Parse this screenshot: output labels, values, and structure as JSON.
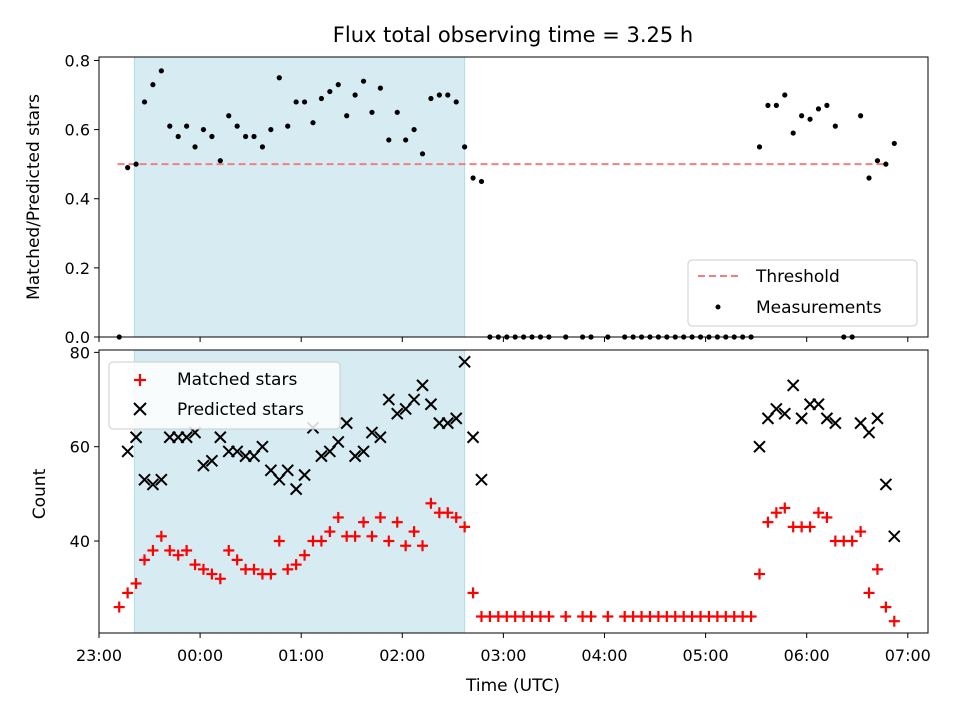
{
  "title": "Flux total observing time = 3.25 h",
  "chart_data": [
    {
      "type": "scatter",
      "ylabel": "Matched/Predicted stars",
      "xlim": [
        "23:00",
        "07:12"
      ],
      "ylim": [
        0,
        0.81
      ],
      "yticks": [
        "0.0",
        "0.2",
        "0.4",
        "0.6",
        "0.8"
      ],
      "shaded_interval": [
        "23:21",
        "02:37"
      ],
      "threshold": {
        "name": "Threshold",
        "value": 0.5,
        "from": "23:11",
        "to": "06:48",
        "color": "#f08080"
      },
      "legend": {
        "placement": "lower-right",
        "entries": [
          "Threshold",
          "Measurements"
        ]
      },
      "series": [
        {
          "name": "Measurements",
          "color": "#000000",
          "points": [
            [
              "23:12",
              0.0
            ],
            [
              "23:17",
              0.49
            ],
            [
              "23:22",
              0.5
            ],
            [
              "23:27",
              0.68
            ],
            [
              "23:32",
              0.73
            ],
            [
              "23:37",
              0.77
            ],
            [
              "23:42",
              0.61
            ],
            [
              "23:47",
              0.58
            ],
            [
              "23:52",
              0.61
            ],
            [
              "23:57",
              0.55
            ],
            [
              "00:02",
              0.6
            ],
            [
              "00:07",
              0.58
            ],
            [
              "00:12",
              0.51
            ],
            [
              "00:17",
              0.64
            ],
            [
              "00:22",
              0.61
            ],
            [
              "00:27",
              0.58
            ],
            [
              "00:32",
              0.58
            ],
            [
              "00:37",
              0.55
            ],
            [
              "00:42",
              0.6
            ],
            [
              "00:47",
              0.75
            ],
            [
              "00:52",
              0.61
            ],
            [
              "00:57",
              0.68
            ],
            [
              "01:02",
              0.68
            ],
            [
              "01:07",
              0.62
            ],
            [
              "01:12",
              0.69
            ],
            [
              "01:17",
              0.71
            ],
            [
              "01:22",
              0.73
            ],
            [
              "01:27",
              0.64
            ],
            [
              "01:32",
              0.7
            ],
            [
              "01:37",
              0.74
            ],
            [
              "01:42",
              0.65
            ],
            [
              "01:47",
              0.72
            ],
            [
              "01:52",
              0.57
            ],
            [
              "01:57",
              0.65
            ],
            [
              "02:02",
              0.57
            ],
            [
              "02:07",
              0.6
            ],
            [
              "02:12",
              0.53
            ],
            [
              "02:17",
              0.69
            ],
            [
              "02:22",
              0.7
            ],
            [
              "02:27",
              0.7
            ],
            [
              "02:32",
              0.68
            ],
            [
              "02:37",
              0.55
            ],
            [
              "02:42",
              0.46
            ],
            [
              "02:47",
              0.45
            ],
            [
              "02:52",
              0.0
            ],
            [
              "02:57",
              0.0
            ],
            [
              "03:02",
              0.0
            ],
            [
              "03:07",
              0.0
            ],
            [
              "03:12",
              0.0
            ],
            [
              "03:17",
              0.0
            ],
            [
              "03:22",
              0.0
            ],
            [
              "03:27",
              0.0
            ],
            [
              "03:37",
              0.0
            ],
            [
              "03:47",
              0.0
            ],
            [
              "03:52",
              0.0
            ],
            [
              "04:02",
              0.0
            ],
            [
              "04:12",
              0.0
            ],
            [
              "04:17",
              0.0
            ],
            [
              "04:22",
              0.0
            ],
            [
              "04:27",
              0.0
            ],
            [
              "04:32",
              0.0
            ],
            [
              "04:37",
              0.0
            ],
            [
              "04:42",
              0.0
            ],
            [
              "04:47",
              0.0
            ],
            [
              "04:52",
              0.0
            ],
            [
              "04:57",
              0.0
            ],
            [
              "05:02",
              0.0
            ],
            [
              "05:07",
              0.0
            ],
            [
              "05:12",
              0.0
            ],
            [
              "05:17",
              0.0
            ],
            [
              "05:22",
              0.0
            ],
            [
              "05:27",
              0.0
            ],
            [
              "05:32",
              0.55
            ],
            [
              "05:37",
              0.67
            ],
            [
              "05:42",
              0.67
            ],
            [
              "05:47",
              0.7
            ],
            [
              "05:52",
              0.59
            ],
            [
              "05:57",
              0.64
            ],
            [
              "06:02",
              0.63
            ],
            [
              "06:07",
              0.66
            ],
            [
              "06:12",
              0.67
            ],
            [
              "06:17",
              0.61
            ],
            [
              "06:22",
              0.0
            ],
            [
              "06:27",
              0.0
            ],
            [
              "06:32",
              0.64
            ],
            [
              "06:37",
              0.46
            ],
            [
              "06:42",
              0.51
            ],
            [
              "06:47",
              0.5
            ],
            [
              "06:52",
              0.56
            ]
          ]
        }
      ]
    },
    {
      "type": "scatter",
      "xlabel": "Time (UTC)",
      "ylabel": "Count",
      "xlim": [
        "23:00",
        "07:12"
      ],
      "ylim": [
        20.5,
        80.5
      ],
      "yticks": [
        "40",
        "60",
        "80"
      ],
      "xticks": [
        "23:00",
        "00:00",
        "01:00",
        "02:00",
        "03:00",
        "04:00",
        "05:00",
        "06:00",
        "07:00"
      ],
      "shaded_interval": [
        "23:21",
        "02:37"
      ],
      "legend": {
        "placement": "upper-left",
        "entries": [
          "Matched stars",
          "Predicted stars"
        ]
      },
      "series": [
        {
          "name": "Matched stars",
          "marker": "plus",
          "color": "#ff0000",
          "points": [
            [
              "23:12",
              26
            ],
            [
              "23:17",
              29
            ],
            [
              "23:22",
              31
            ],
            [
              "23:27",
              36
            ],
            [
              "23:32",
              38
            ],
            [
              "23:37",
              41
            ],
            [
              "23:42",
              38
            ],
            [
              "23:47",
              37
            ],
            [
              "23:52",
              38
            ],
            [
              "23:57",
              35
            ],
            [
              "00:02",
              34
            ],
            [
              "00:07",
              33
            ],
            [
              "00:12",
              32
            ],
            [
              "00:17",
              38
            ],
            [
              "00:22",
              36
            ],
            [
              "00:27",
              34
            ],
            [
              "00:32",
              34
            ],
            [
              "00:37",
              33
            ],
            [
              "00:42",
              33
            ],
            [
              "00:47",
              40
            ],
            [
              "00:52",
              34
            ],
            [
              "00:57",
              35
            ],
            [
              "01:02",
              37
            ],
            [
              "01:07",
              40
            ],
            [
              "01:12",
              40
            ],
            [
              "01:17",
              42
            ],
            [
              "01:22",
              45
            ],
            [
              "01:27",
              41
            ],
            [
              "01:32",
              41
            ],
            [
              "01:37",
              44
            ],
            [
              "01:42",
              41
            ],
            [
              "01:47",
              45
            ],
            [
              "01:52",
              40
            ],
            [
              "01:57",
              44
            ],
            [
              "02:02",
              39
            ],
            [
              "02:07",
              42
            ],
            [
              "02:12",
              39
            ],
            [
              "02:17",
              48
            ],
            [
              "02:22",
              46
            ],
            [
              "02:27",
              46
            ],
            [
              "02:32",
              45
            ],
            [
              "02:37",
              43
            ],
            [
              "02:42",
              29
            ],
            [
              "02:47",
              24
            ],
            [
              "02:52",
              24
            ],
            [
              "02:57",
              24
            ],
            [
              "03:02",
              24
            ],
            [
              "03:07",
              24
            ],
            [
              "03:12",
              24
            ],
            [
              "03:17",
              24
            ],
            [
              "03:22",
              24
            ],
            [
              "03:27",
              24
            ],
            [
              "03:37",
              24
            ],
            [
              "03:47",
              24
            ],
            [
              "03:52",
              24
            ],
            [
              "04:02",
              24
            ],
            [
              "04:12",
              24
            ],
            [
              "04:17",
              24
            ],
            [
              "04:22",
              24
            ],
            [
              "04:27",
              24
            ],
            [
              "04:32",
              24
            ],
            [
              "04:37",
              24
            ],
            [
              "04:42",
              24
            ],
            [
              "04:47",
              24
            ],
            [
              "04:52",
              24
            ],
            [
              "04:57",
              24
            ],
            [
              "05:02",
              24
            ],
            [
              "05:07",
              24
            ],
            [
              "05:12",
              24
            ],
            [
              "05:17",
              24
            ],
            [
              "05:22",
              24
            ],
            [
              "05:27",
              24
            ],
            [
              "05:32",
              33
            ],
            [
              "05:37",
              44
            ],
            [
              "05:42",
              46
            ],
            [
              "05:47",
              47
            ],
            [
              "05:52",
              43
            ],
            [
              "05:57",
              43
            ],
            [
              "06:02",
              43
            ],
            [
              "06:07",
              46
            ],
            [
              "06:12",
              45
            ],
            [
              "06:17",
              40
            ],
            [
              "06:22",
              40
            ],
            [
              "06:27",
              40
            ],
            [
              "06:32",
              42
            ],
            [
              "06:37",
              29
            ],
            [
              "06:42",
              34
            ],
            [
              "06:47",
              26
            ],
            [
              "06:52",
              23
            ]
          ]
        },
        {
          "name": "Predicted stars",
          "marker": "x",
          "color": "#000000",
          "points": [
            [
              "23:17",
              59
            ],
            [
              "23:22",
              62
            ],
            [
              "23:27",
              53
            ],
            [
              "23:32",
              52
            ],
            [
              "23:37",
              53
            ],
            [
              "23:42",
              62
            ],
            [
              "23:47",
              62
            ],
            [
              "23:52",
              62
            ],
            [
              "23:57",
              63
            ],
            [
              "00:02",
              56
            ],
            [
              "00:07",
              57
            ],
            [
              "00:12",
              62
            ],
            [
              "00:17",
              59
            ],
            [
              "00:22",
              59
            ],
            [
              "00:27",
              58
            ],
            [
              "00:32",
              58
            ],
            [
              "00:37",
              60
            ],
            [
              "00:42",
              55
            ],
            [
              "00:47",
              53
            ],
            [
              "00:52",
              55
            ],
            [
              "00:57",
              51
            ],
            [
              "01:02",
              54
            ],
            [
              "01:07",
              64
            ],
            [
              "01:12",
              58
            ],
            [
              "01:17",
              59
            ],
            [
              "01:22",
              61
            ],
            [
              "01:27",
              65
            ],
            [
              "01:32",
              58
            ],
            [
              "01:37",
              59
            ],
            [
              "01:42",
              63
            ],
            [
              "01:47",
              62
            ],
            [
              "01:52",
              70
            ],
            [
              "01:57",
              67
            ],
            [
              "02:02",
              68
            ],
            [
              "02:07",
              70
            ],
            [
              "02:12",
              73
            ],
            [
              "02:17",
              69
            ],
            [
              "02:22",
              65
            ],
            [
              "02:27",
              65
            ],
            [
              "02:32",
              66
            ],
            [
              "02:37",
              78
            ],
            [
              "02:42",
              62
            ],
            [
              "02:47",
              53
            ],
            [
              "05:32",
              60
            ],
            [
              "05:37",
              66
            ],
            [
              "05:42",
              68
            ],
            [
              "05:47",
              67
            ],
            [
              "05:52",
              73
            ],
            [
              "05:57",
              66
            ],
            [
              "06:02",
              69
            ],
            [
              "06:07",
              69
            ],
            [
              "06:12",
              66
            ],
            [
              "06:17",
              65
            ],
            [
              "06:32",
              65
            ],
            [
              "06:37",
              63
            ],
            [
              "06:42",
              66
            ],
            [
              "06:47",
              52
            ],
            [
              "06:52",
              41
            ]
          ]
        }
      ]
    }
  ]
}
